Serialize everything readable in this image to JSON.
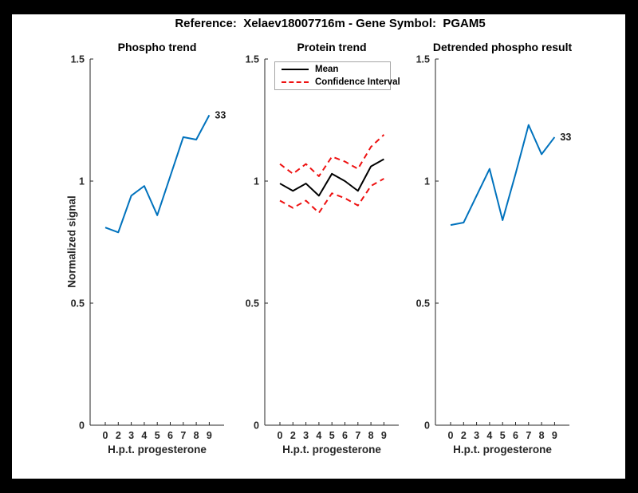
{
  "figure": {
    "title": "Reference:  Xelaev18007716m - Gene Symbol:  PGAM5"
  },
  "colors": {
    "blue": "#0072BD",
    "red": "#ee1111",
    "axis": "#262626",
    "black": "#000000",
    "legend_border": "#a6a6a6"
  },
  "chart_data": [
    {
      "type": "line",
      "title": "Phospho trend",
      "xlabel": "H.p.t. progesterone",
      "ylabel": "Normalized signal",
      "x_tick_labels": [
        "0",
        "2",
        "3",
        "4",
        "5",
        "6",
        "7",
        "8",
        "9"
      ],
      "y_ticks": [
        0,
        0.5,
        1,
        1.5
      ],
      "y_tick_labels": [
        "0",
        "0.5",
        "1",
        "1.5"
      ],
      "ylim": [
        0,
        1.5
      ],
      "grid": false,
      "series": [
        {
          "name": "phospho-trend",
          "color": "#0072BD",
          "style": "solid",
          "values": [
            0.81,
            0.79,
            0.94,
            0.98,
            0.86,
            1.02,
            1.18,
            1.17,
            1.27
          ],
          "end_label": "33"
        }
      ]
    },
    {
      "type": "line",
      "title": "Protein trend",
      "xlabel": "H.p.t. progesterone",
      "x_tick_labels": [
        "0",
        "2",
        "3",
        "4",
        "5",
        "6",
        "7",
        "8",
        "9"
      ],
      "y_ticks": [
        0,
        0.5,
        1,
        1.5
      ],
      "y_tick_labels": [
        "0",
        "0.5",
        "1",
        "1.5"
      ],
      "ylim": [
        0,
        1.5
      ],
      "grid": false,
      "legend_position": "top-left",
      "legend": [
        {
          "label": "Mean",
          "color": "#000000",
          "style": "solid"
        },
        {
          "label": "Confidence Interval",
          "color": "#ee1111",
          "style": "dashed"
        }
      ],
      "series": [
        {
          "name": "protein-mean",
          "color": "#000000",
          "style": "solid",
          "values": [
            0.99,
            0.96,
            0.99,
            0.94,
            1.03,
            1.0,
            0.96,
            1.06,
            1.09
          ]
        },
        {
          "name": "confidence-upper",
          "color": "#ee1111",
          "style": "dashed",
          "values": [
            1.07,
            1.03,
            1.07,
            1.02,
            1.1,
            1.08,
            1.05,
            1.14,
            1.19
          ]
        },
        {
          "name": "confidence-lower",
          "color": "#ee1111",
          "style": "dashed",
          "values": [
            0.92,
            0.89,
            0.92,
            0.87,
            0.95,
            0.93,
            0.9,
            0.98,
            1.01
          ]
        }
      ]
    },
    {
      "type": "line",
      "title": "Detrended phospho result",
      "xlabel": "H.p.t. progesterone",
      "x_tick_labels": [
        "0",
        "2",
        "3",
        "4",
        "5",
        "6",
        "7",
        "8",
        "9"
      ],
      "y_ticks": [
        0,
        0.5,
        1,
        1.5
      ],
      "y_tick_labels": [
        "0",
        "0.5",
        "1",
        "1.5"
      ],
      "ylim": [
        0,
        1.5
      ],
      "grid": false,
      "series": [
        {
          "name": "detrended-phospho",
          "color": "#0072BD",
          "style": "solid",
          "values": [
            0.82,
            0.83,
            0.94,
            1.05,
            0.84,
            1.03,
            1.23,
            1.11,
            1.18
          ],
          "end_label": "33"
        }
      ]
    }
  ]
}
